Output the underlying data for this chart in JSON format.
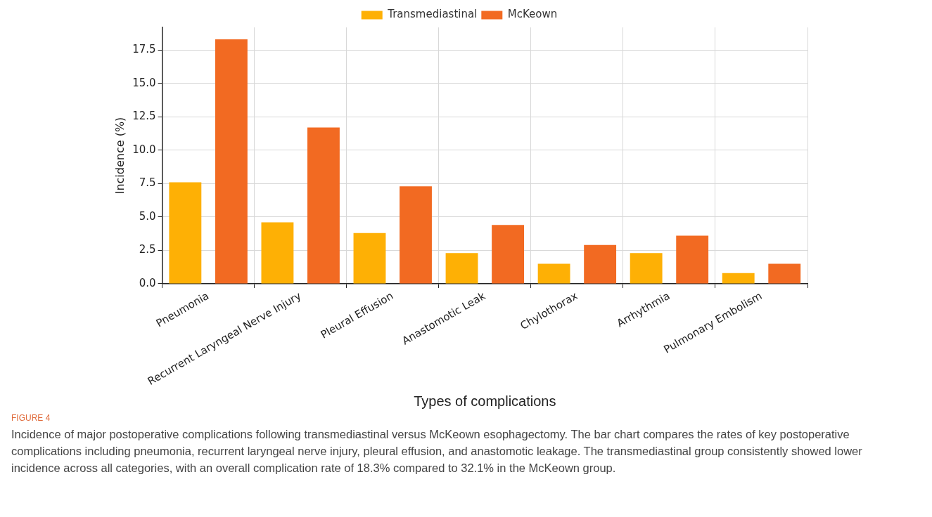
{
  "chart_data": {
    "type": "bar",
    "xlabel": "Types of complications",
    "ylabel": "Incidence (%)",
    "categories": [
      "Pneumonia",
      "Recurrent Laryngeal Nerve Injury",
      "Pleural Effusion",
      "Anastomotic Leak",
      "Chylothorax",
      "Arrhythmia",
      "Pulmonary Embolism"
    ],
    "series": [
      {
        "name": "Transmediastinal",
        "color": "#feb005",
        "values": [
          7.6,
          4.6,
          3.8,
          2.3,
          1.5,
          2.3,
          0.8
        ]
      },
      {
        "name": "McKeown",
        "color": "#f26a22",
        "values": [
          18.3,
          11.7,
          7.3,
          4.4,
          2.9,
          3.6,
          1.5
        ]
      }
    ],
    "ylim": [
      0,
      19.2
    ],
    "yticks": [
      {
        "value": 0,
        "label": "0.0"
      },
      {
        "value": 2.5,
        "label": "2.5"
      },
      {
        "value": 5,
        "label": "5.0"
      },
      {
        "value": 7.5,
        "label": "7.5"
      },
      {
        "value": 10,
        "label": "10.0"
      },
      {
        "value": 12.5,
        "label": "12.5"
      },
      {
        "value": 15,
        "label": "15.0"
      },
      {
        "value": 17.5,
        "label": "17.5"
      }
    ],
    "grid": true,
    "legend": "top",
    "annotations": [
      "FIGURE 4",
      "Incidence of major postoperative complications following transmediastinal versus McKeown esophagectomy. The bar chart compares the rates of key postoperative complications including pneumonia, recurrent laryngeal nerve injury, pleural effusion, and anastomotic leakage. The transmediastinal group consistently showed lower incidence across all categories, with an overall complication rate of 18.3% compared to 32.1% in the McKeown group."
    ]
  }
}
